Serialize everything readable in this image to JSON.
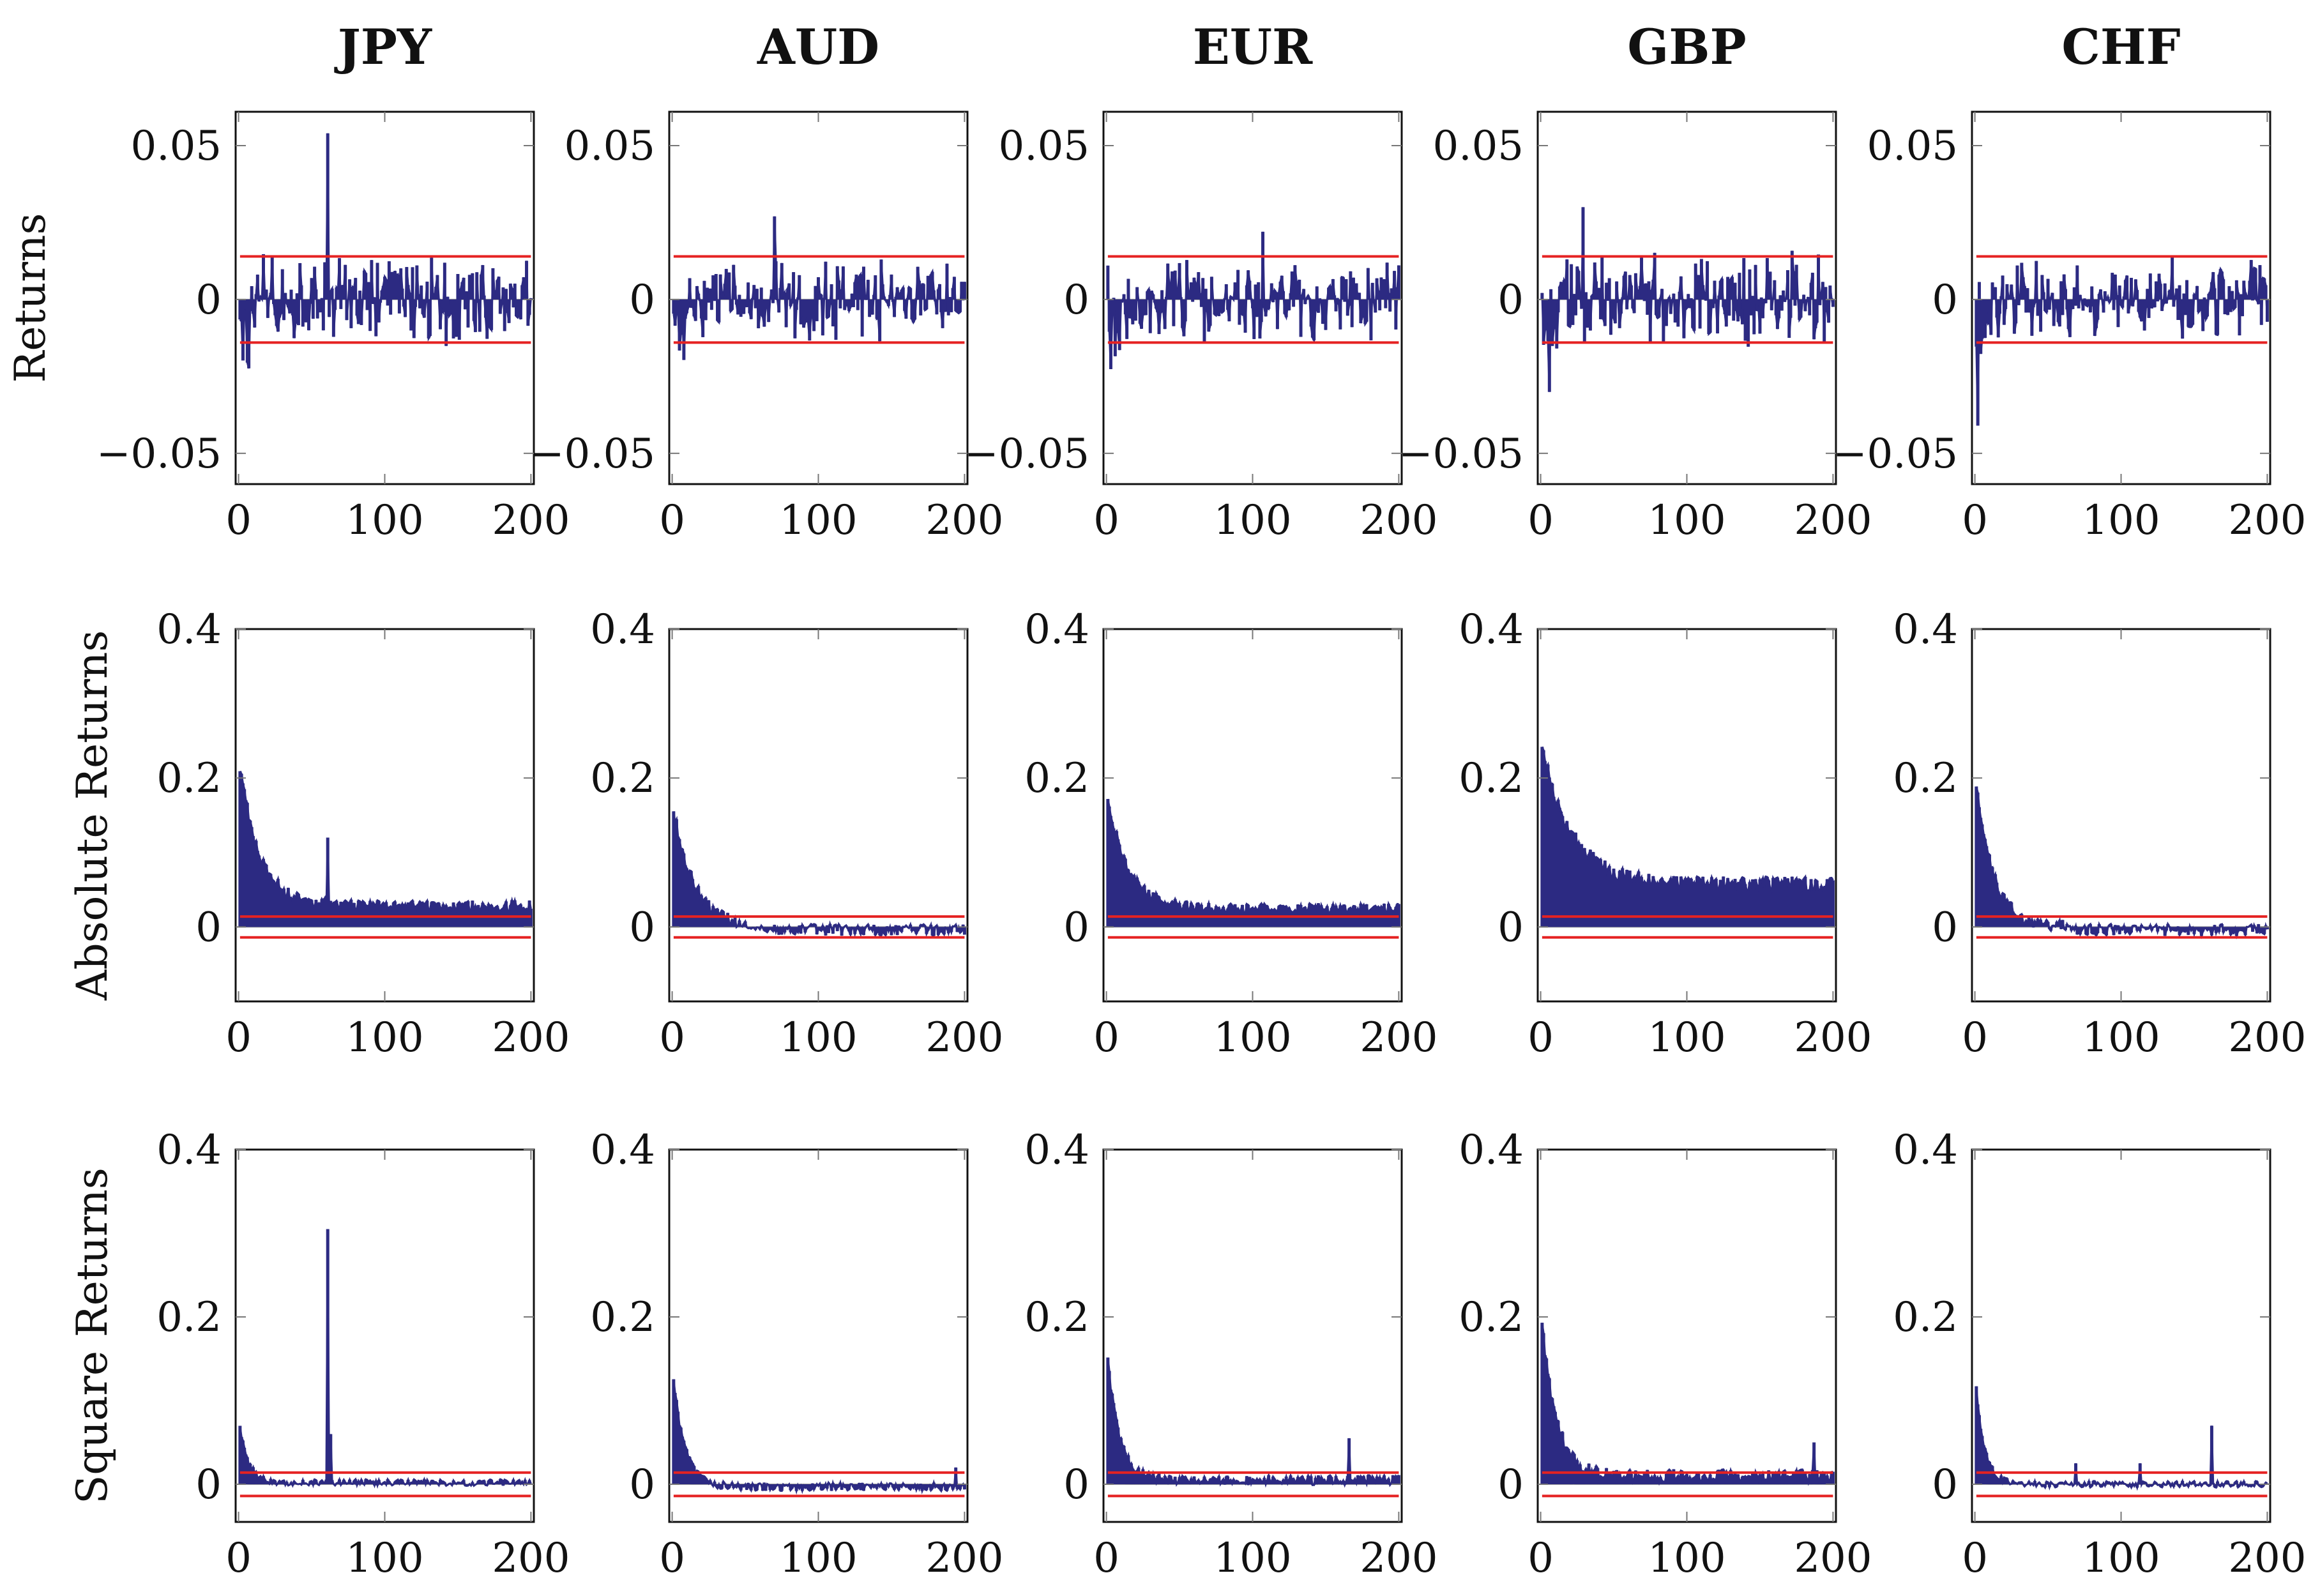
{
  "figure": {
    "column_titles": [
      "JPY",
      "AUD",
      "EUR",
      "GBP",
      "CHF"
    ],
    "row_labels": [
      "Returns",
      "Absolute Returns",
      "Square Returns"
    ]
  },
  "colors": {
    "series": "#2c2a82",
    "band": "#e52222",
    "frame": "#111111"
  },
  "chart_data": [
    {
      "type": "bar",
      "title": "JPY",
      "ylabel": "Returns",
      "xlim": [
        -2,
        202
      ],
      "ylim": [
        -0.06,
        0.061
      ],
      "xticks": [
        0,
        100,
        200
      ],
      "yticks": [
        -0.05,
        0,
        0.05
      ],
      "ytick_labels": [
        "−0.05",
        "0",
        "0.05"
      ],
      "band": 0.014,
      "lags": "1-200",
      "profile": "returns",
      "peak": {
        "lag": 61,
        "value": 0.054
      },
      "amplitude": 0.012
    },
    {
      "type": "bar",
      "title": "AUD",
      "ylabel": "Returns",
      "xlim": [
        -2,
        202
      ],
      "ylim": [
        -0.06,
        0.061
      ],
      "xticks": [
        0,
        100,
        200
      ],
      "yticks": [
        -0.05,
        0,
        0.05
      ],
      "ytick_labels": [
        "−0.05",
        "0",
        "0.05"
      ],
      "band": 0.014,
      "lags": "1-200",
      "profile": "returns",
      "peak": {
        "lag": 70,
        "value": 0.027
      },
      "amplitude": 0.011
    },
    {
      "type": "bar",
      "title": "EUR",
      "ylabel": "Returns",
      "xlim": [
        -2,
        202
      ],
      "ylim": [
        -0.06,
        0.061
      ],
      "xticks": [
        0,
        100,
        200
      ],
      "yticks": [
        -0.05,
        0,
        0.05
      ],
      "ytick_labels": [
        "−0.05",
        "0",
        "0.05"
      ],
      "band": 0.014,
      "lags": "1-200",
      "profile": "returns",
      "peak": {
        "lag": 107,
        "value": 0.022
      },
      "amplitude": 0.011
    },
    {
      "type": "bar",
      "title": "GBP",
      "ylabel": "Returns",
      "xlim": [
        -2,
        202
      ],
      "ylim": [
        -0.06,
        0.061
      ],
      "xticks": [
        0,
        100,
        200
      ],
      "yticks": [
        -0.05,
        0,
        0.05
      ],
      "ytick_labels": [
        "−0.05",
        "0",
        "0.05"
      ],
      "band": 0.014,
      "lags": "1-200",
      "profile": "returns",
      "peak": {
        "lag": 29,
        "value": 0.03
      },
      "amplitude": 0.013
    },
    {
      "type": "bar",
      "title": "CHF",
      "ylabel": "Returns",
      "xlim": [
        -2,
        202
      ],
      "ylim": [
        -0.06,
        0.061
      ],
      "xticks": [
        0,
        100,
        200
      ],
      "yticks": [
        -0.05,
        0,
        0.05
      ],
      "ytick_labels": [
        "−0.05",
        "0",
        "0.05"
      ],
      "band": 0.014,
      "lags": "1-200",
      "profile": "returns",
      "peak": {
        "lag": 2,
        "value": -0.041
      },
      "amplitude": 0.011
    },
    {
      "type": "bar",
      "title": "JPY",
      "ylabel": "Absolute Returns",
      "xlim": [
        -2,
        202
      ],
      "ylim": [
        -0.1,
        0.4
      ],
      "xticks": [
        0,
        100,
        200
      ],
      "yticks": [
        0,
        0.2,
        0.4
      ],
      "ytick_labels": [
        "0",
        "0.2",
        "0.4"
      ],
      "band": 0.014,
      "lags": "1-200",
      "profile": "decay",
      "start": 0.215,
      "floor": 0.028,
      "tau": 14,
      "noise": 0.008,
      "spikes": [
        [
          61,
          0.12
        ]
      ]
    },
    {
      "type": "bar",
      "title": "AUD",
      "ylabel": "Absolute Returns",
      "xlim": [
        -2,
        202
      ],
      "ylim": [
        -0.1,
        0.4
      ],
      "xticks": [
        0,
        100,
        200
      ],
      "yticks": [
        0,
        0.2,
        0.4
      ],
      "ytick_labels": [
        "0",
        "0.2",
        "0.4"
      ],
      "band": 0.014,
      "lags": "1-200",
      "profile": "decay_to_neg",
      "start": 0.16,
      "floor": 0.0,
      "tau": 14,
      "noise": 0.008,
      "spikes": []
    },
    {
      "type": "bar",
      "title": "EUR",
      "ylabel": "Absolute Returns",
      "xlim": [
        -2,
        202
      ],
      "ylim": [
        -0.1,
        0.4
      ],
      "xticks": [
        0,
        100,
        200
      ],
      "yticks": [
        0,
        0.2,
        0.4
      ],
      "ytick_labels": [
        "0",
        "0.2",
        "0.4"
      ],
      "band": 0.014,
      "lags": "1-200",
      "profile": "decay",
      "start": 0.175,
      "floor": 0.025,
      "tau": 14,
      "noise": 0.007,
      "spikes": []
    },
    {
      "type": "bar",
      "title": "GBP",
      "ylabel": "Absolute Returns",
      "xlim": [
        -2,
        202
      ],
      "ylim": [
        -0.1,
        0.4
      ],
      "xticks": [
        0,
        100,
        200
      ],
      "yticks": [
        0,
        0.2,
        0.4
      ],
      "ytick_labels": [
        "0",
        "0.2",
        "0.4"
      ],
      "band": 0.014,
      "lags": "1-200",
      "profile": "decay",
      "start": 0.245,
      "floor": 0.058,
      "tau": 20,
      "noise": 0.01,
      "spikes": []
    },
    {
      "type": "bar",
      "title": "CHF",
      "ylabel": "Absolute Returns",
      "xlim": [
        -2,
        202
      ],
      "ylim": [
        -0.1,
        0.4
      ],
      "xticks": [
        0,
        100,
        200
      ],
      "yticks": [
        0,
        0.2,
        0.4
      ],
      "ytick_labels": [
        "0",
        "0.2",
        "0.4"
      ],
      "band": 0.014,
      "lags": "1-200",
      "profile": "decay_to_neg",
      "start": 0.19,
      "floor": 0.0,
      "tau": 12,
      "noise": 0.008,
      "spikes": []
    },
    {
      "type": "bar",
      "title": "JPY",
      "ylabel": "Square Returns",
      "xlim": [
        -2,
        202
      ],
      "ylim": [
        -0.045,
        0.4
      ],
      "xticks": [
        0,
        100,
        200
      ],
      "yticks": [
        0,
        0.2,
        0.4
      ],
      "ytick_labels": [
        "0",
        "0.2",
        "0.4"
      ],
      "band": 0.014,
      "lags": "1-200",
      "profile": "decay",
      "start": 0.07,
      "floor": 0.002,
      "tau": 6,
      "noise": 0.004,
      "spikes": [
        [
          61,
          0.305
        ],
        [
          63,
          0.06
        ]
      ]
    },
    {
      "type": "bar",
      "title": "AUD",
      "ylabel": "Square Returns",
      "xlim": [
        -2,
        202
      ],
      "ylim": [
        -0.045,
        0.4
      ],
      "xticks": [
        0,
        100,
        200
      ],
      "yticks": [
        0,
        0.2,
        0.4
      ],
      "ytick_labels": [
        "0",
        "0.2",
        "0.4"
      ],
      "band": 0.014,
      "lags": "1-200",
      "profile": "decay",
      "start": 0.125,
      "floor": -0.003,
      "tau": 8,
      "noise": 0.005,
      "spikes": [
        [
          194,
          0.02
        ]
      ]
    },
    {
      "type": "bar",
      "title": "EUR",
      "ylabel": "Square Returns",
      "xlim": [
        -2,
        202
      ],
      "ylim": [
        -0.045,
        0.4
      ],
      "xticks": [
        0,
        100,
        200
      ],
      "yticks": [
        0,
        0.2,
        0.4
      ],
      "ytick_labels": [
        "0",
        "0.2",
        "0.4"
      ],
      "band": 0.014,
      "lags": "1-200",
      "profile": "decay",
      "start": 0.15,
      "floor": 0.005,
      "tau": 8,
      "noise": 0.006,
      "spikes": [
        [
          166,
          0.055
        ]
      ]
    },
    {
      "type": "bar",
      "title": "GBP",
      "ylabel": "Square Returns",
      "xlim": [
        -2,
        202
      ],
      "ylim": [
        -0.045,
        0.4
      ],
      "xticks": [
        0,
        100,
        200
      ],
      "yticks": [
        0,
        0.2,
        0.4
      ],
      "ytick_labels": [
        "0",
        "0.2",
        "0.4"
      ],
      "band": 0.014,
      "lags": "1-200",
      "profile": "decay",
      "start": 0.19,
      "floor": 0.01,
      "tau": 10,
      "noise": 0.008,
      "spikes": [
        [
          187,
          0.05
        ]
      ]
    },
    {
      "type": "bar",
      "title": "CHF",
      "ylabel": "Square Returns",
      "xlim": [
        -2,
        202
      ],
      "ylim": [
        -0.045,
        0.4
      ],
      "xticks": [
        0,
        100,
        200
      ],
      "yticks": [
        0,
        0.2,
        0.4
      ],
      "ytick_labels": [
        "0",
        "0.2",
        "0.4"
      ],
      "band": 0.014,
      "lags": "1-200",
      "profile": "decay",
      "start": 0.115,
      "floor": 0.0,
      "tau": 6,
      "noise": 0.004,
      "spikes": [
        [
          162,
          0.07
        ],
        [
          69,
          0.025
        ],
        [
          113,
          0.025
        ]
      ]
    }
  ]
}
